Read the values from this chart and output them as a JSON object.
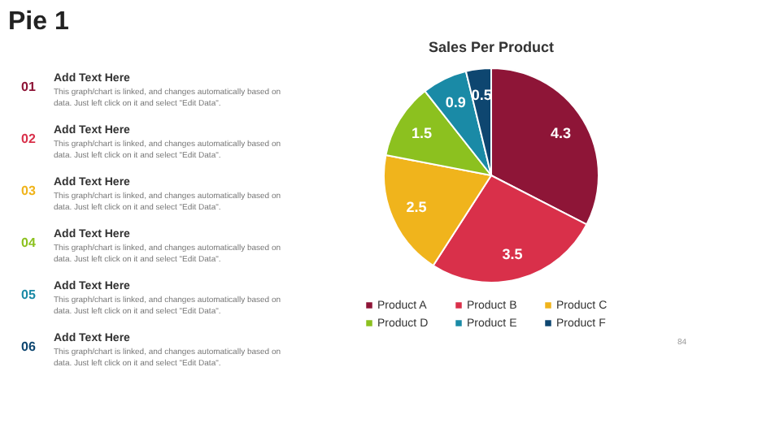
{
  "chart_data": {
    "type": "pie",
    "title": "Pie 1",
    "subtitle": "Sales Per Product",
    "categories": [
      "Product A",
      "Product B",
      "Product C",
      "Product D",
      "Product E",
      "Product F"
    ],
    "values": [
      4.3,
      3.5,
      2.5,
      1.5,
      0.9,
      0.5
    ],
    "colors": [
      "#8e1537",
      "#d9304a",
      "#f0b41c",
      "#8cc11f",
      "#1a8aa6",
      "#0e4670"
    ],
    "data_labels": true,
    "legend": "bottom",
    "annotations": [
      "01",
      "Add Text Here",
      "This graph/chart is linked, and changes automatically based on data. Just left click on it and select \"Edit Data\".",
      "02",
      "Add Text Here",
      "This graph/chart is linked, and changes automatically based on data. Just left click on it and select \"Edit Data\".",
      "03",
      "Add Text Here",
      "This graph/chart is linked, and changes automatically based on data. Just left click on it and select \"Edit Data\".",
      "04",
      "Add Text Here",
      "This graph/chart is linked, and changes automatically based on data. Just left click on it and select \"Edit Data\".",
      "05",
      "Add Text Here",
      "This graph/chart is linked, and changes automatically based on data. Just left click on it and select \"Edit Data\".",
      "06",
      "Add Text Here",
      "This graph/chart is linked, and changes automatically based on data. Just left click on it and select \"Edit Data\".",
      "84"
    ]
  }
}
